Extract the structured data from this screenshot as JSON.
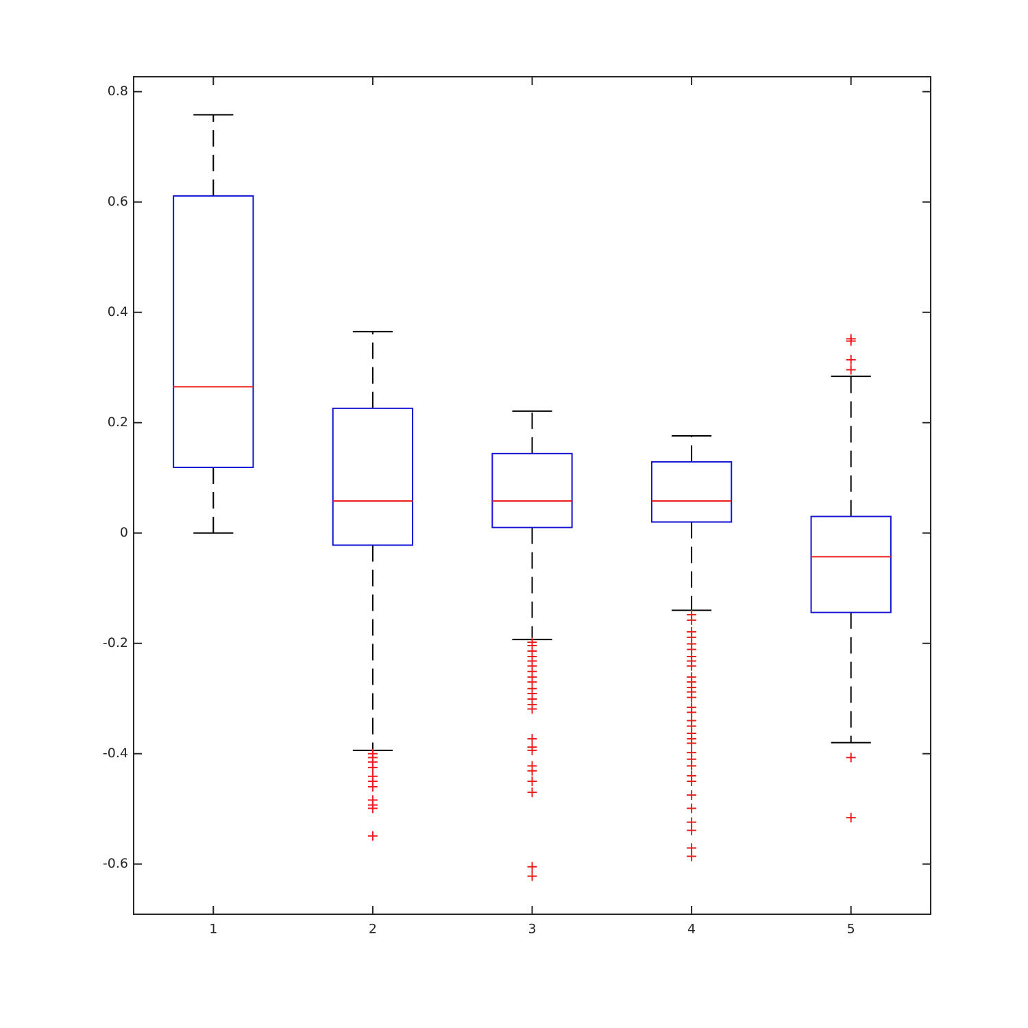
{
  "chart_data": {
    "type": "box",
    "categories": [
      "1",
      "2",
      "3",
      "4",
      "5"
    ],
    "boxes": [
      {
        "low": 0,
        "q1": 0.119,
        "median": 0.265,
        "q3": 0.611,
        "high": 0.758,
        "outliers": []
      },
      {
        "low": -0.394,
        "q1": -0.022,
        "median": 0.058,
        "q3": 0.226,
        "high": 0.365,
        "outliers": [
          -0.4,
          -0.407,
          -0.415,
          -0.425,
          -0.441,
          -0.45,
          -0.46,
          -0.484,
          -0.493,
          -0.499,
          -0.549
        ]
      },
      {
        "low": -0.193,
        "q1": 0.01,
        "median": 0.058,
        "q3": 0.144,
        "high": 0.221,
        "outliers": [
          -0.198,
          -0.204,
          -0.214,
          -0.224,
          -0.232,
          -0.241,
          -0.251,
          -0.261,
          -0.27,
          -0.282,
          -0.291,
          -0.301,
          -0.311,
          -0.319,
          -0.373,
          -0.388,
          -0.394,
          -0.422,
          -0.431,
          -0.45,
          -0.47,
          -0.605,
          -0.622
        ]
      },
      {
        "low": -0.14,
        "q1": 0.02,
        "median": 0.058,
        "q3": 0.129,
        "high": 0.176,
        "outliers": [
          -0.148,
          -0.158,
          -0.179,
          -0.189,
          -0.201,
          -0.211,
          -0.224,
          -0.232,
          -0.241,
          -0.261,
          -0.27,
          -0.28,
          -0.288,
          -0.298,
          -0.316,
          -0.325,
          -0.34,
          -0.35,
          -0.363,
          -0.373,
          -0.381,
          -0.398,
          -0.41,
          -0.422,
          -0.44,
          -0.45,
          -0.475,
          -0.499,
          -0.524,
          -0.539,
          -0.571,
          -0.586
        ]
      },
      {
        "low": -0.38,
        "q1": -0.144,
        "median": -0.043,
        "q3": 0.03,
        "high": 0.284,
        "outliers": [
          0.352,
          0.348,
          0.314,
          0.296,
          -0.407,
          -0.516
        ]
      }
    ],
    "ylim": [
      -0.691,
      0.827
    ],
    "yticks": [
      -0.6,
      -0.4,
      -0.2,
      0,
      0.2,
      0.4,
      0.6,
      0.8
    ],
    "box_color": "#1414d2",
    "median_color": "#ee1c1c",
    "whisker_color": "#000000",
    "outlier_color": "#ee1c1c"
  }
}
